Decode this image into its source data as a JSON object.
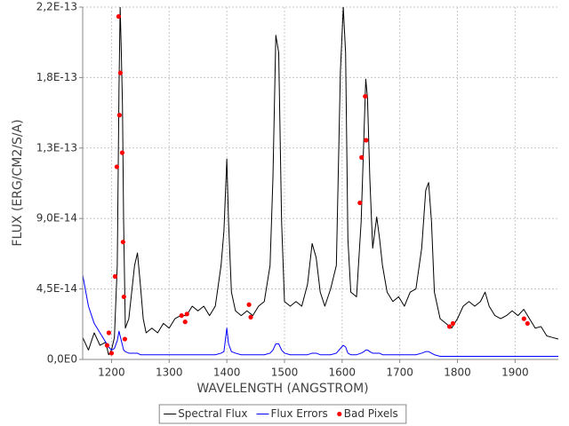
{
  "chart_data": {
    "type": "line",
    "xlabel": "WAVELENGTH (ANGSTROM)",
    "ylabel": "FLUX (ERG/CM2/S/A)",
    "xlim": [
      1150,
      1975
    ],
    "ylim": [
      0,
      2.25e-13
    ],
    "xticks": [
      1200,
      1300,
      1400,
      1500,
      1600,
      1700,
      1800,
      1900
    ],
    "yticks": [
      {
        "value": 0,
        "label": "0,0E0"
      },
      {
        "value": 4.5e-14,
        "label": "4,5E-14"
      },
      {
        "value": 9e-14,
        "label": "9,0E-14"
      },
      {
        "value": 1.35e-13,
        "label": "1,3E-13"
      },
      {
        "value": 1.8e-13,
        "label": "1,8E-13"
      },
      {
        "value": 2.25e-13,
        "label": "2,2E-13"
      }
    ],
    "grid": true,
    "legend": "bottom",
    "x": [
      1150,
      1160,
      1170,
      1180,
      1190,
      1195,
      1200,
      1205,
      1210,
      1213,
      1215,
      1217,
      1219,
      1221,
      1224,
      1230,
      1235,
      1240,
      1245,
      1250,
      1255,
      1260,
      1270,
      1280,
      1290,
      1300,
      1310,
      1320,
      1330,
      1340,
      1350,
      1360,
      1370,
      1380,
      1390,
      1395,
      1400,
      1403,
      1408,
      1415,
      1425,
      1435,
      1445,
      1455,
      1465,
      1475,
      1480,
      1485,
      1490,
      1495,
      1500,
      1510,
      1520,
      1530,
      1540,
      1548,
      1555,
      1562,
      1570,
      1580,
      1590,
      1597,
      1602,
      1606,
      1610,
      1615,
      1625,
      1633,
      1638,
      1641,
      1644,
      1648,
      1653,
      1660,
      1665,
      1670,
      1678,
      1688,
      1698,
      1708,
      1718,
      1728,
      1738,
      1745,
      1750,
      1755,
      1760,
      1770,
      1780,
      1790,
      1800,
      1810,
      1820,
      1830,
      1840,
      1848,
      1855,
      1865,
      1875,
      1885,
      1895,
      1905,
      1915,
      1925,
      1935,
      1945,
      1955,
      1965,
      1975
    ],
    "series": [
      {
        "name": "Spectral Flux",
        "color": "#000000",
        "values": [
          1.4e-14,
          6e-15,
          1.7e-14,
          9e-15,
          1.1e-14,
          3e-15,
          6e-15,
          1.4e-14,
          6e-14,
          1.73e-13,
          2.25e-13,
          1.96e-13,
          1.62e-13,
          8.8e-14,
          2e-14,
          2.6e-14,
          4.3e-14,
          6e-14,
          6.8e-14,
          4.8e-14,
          2.6e-14,
          1.7e-14,
          2e-14,
          1.7e-14,
          2.3e-14,
          2e-14,
          2.6e-14,
          2.8e-14,
          2.8e-14,
          3.4e-14,
          3.1e-14,
          3.4e-14,
          2.8e-14,
          3.4e-14,
          6e-14,
          8.2e-14,
          1.28e-13,
          8.8e-14,
          4.3e-14,
          3.1e-14,
          2.8e-14,
          3.1e-14,
          2.8e-14,
          3.4e-14,
          3.7e-14,
          6e-14,
          1.16e-13,
          2.07e-13,
          1.96e-13,
          8.8e-14,
          3.7e-14,
          3.4e-14,
          3.7e-14,
          3.4e-14,
          4.8e-14,
          7.4e-14,
          6.5e-14,
          4.3e-14,
          3.4e-14,
          4.5e-14,
          6e-14,
          1.84e-13,
          2.25e-13,
          1.96e-13,
          7.7e-14,
          4.3e-14,
          4e-14,
          8.8e-14,
          1.45e-13,
          1.79e-13,
          1.67e-13,
          1.16e-13,
          7.1e-14,
          9.1e-14,
          7.7e-14,
          6e-14,
          4.3e-14,
          3.7e-14,
          4e-14,
          3.4e-14,
          4.3e-14,
          4.5e-14,
          7.1e-14,
          1.08e-13,
          1.13e-13,
          8.8e-14,
          4.3e-14,
          2.6e-14,
          2.3e-14,
          2e-14,
          2.6e-14,
          3.4e-14,
          3.7e-14,
          3.4e-14,
          3.7e-14,
          4.3e-14,
          3.4e-14,
          2.8e-14,
          2.6e-14,
          2.8e-14,
          3.1e-14,
          2.8e-14,
          3.2e-14,
          2.6e-14,
          2e-14,
          2.1e-14,
          1.5e-14,
          1.4e-14,
          1.3e-14
        ]
      },
      {
        "name": "Flux Errors",
        "color": "#0000ff",
        "values": [
          5.4e-14,
          3.4e-14,
          2.3e-14,
          1.7e-14,
          1.1e-14,
          8e-15,
          6e-15,
          7e-15,
          1.2e-14,
          1.8e-14,
          1.5e-14,
          1.2e-14,
          9e-15,
          6e-15,
          5e-15,
          4e-15,
          4e-15,
          4e-15,
          4e-15,
          3e-15,
          3e-15,
          3e-15,
          3e-15,
          3e-15,
          3e-15,
          3e-15,
          3e-15,
          3e-15,
          3e-15,
          3e-15,
          3e-15,
          3e-15,
          3e-15,
          3e-15,
          4e-15,
          5e-15,
          2e-14,
          1e-14,
          5e-15,
          4e-15,
          3e-15,
          3e-15,
          3e-15,
          3e-15,
          3e-15,
          4e-15,
          6e-15,
          1e-14,
          1e-14,
          6e-15,
          4e-15,
          3e-15,
          3e-15,
          3e-15,
          3e-15,
          4e-15,
          4e-15,
          3e-15,
          3e-15,
          3e-15,
          4e-15,
          7e-15,
          9e-15,
          8e-15,
          4e-15,
          3e-15,
          3e-15,
          4e-15,
          5e-15,
          6e-15,
          6e-15,
          5e-15,
          4e-15,
          4e-15,
          4e-15,
          3e-15,
          3e-15,
          3e-15,
          3e-15,
          3e-15,
          3e-15,
          3e-15,
          4e-15,
          5e-15,
          5e-15,
          4e-15,
          3e-15,
          2e-15,
          2e-15,
          2e-15,
          2e-15,
          2e-15,
          2e-15,
          2e-15,
          2e-15,
          2e-15,
          2e-15,
          2e-15,
          2e-15,
          2e-15,
          2e-15,
          2e-15,
          2e-15,
          2e-15,
          2e-15,
          2e-15,
          2e-15,
          2e-15,
          2e-15
        ]
      },
      {
        "name": "Bad Pixels",
        "color": "#ff0000",
        "type": "scatter",
        "x": [
          1212.3,
          1215.4,
          1213.8,
          1218.5,
          1209.2,
          1220,
          1206.2,
          1221.5,
          1223.1,
          1195.4,
          1192.3,
          1200,
          1321.5,
          1330.8,
          1327.7,
          1438.5,
          1441.5,
          1630.8,
          1633.8,
          1640,
          1641.5,
          1786.2,
          1792.3,
          1915.4,
          1921.5
        ],
        "values": [
          2.19e-13,
          1.83e-13,
          1.56e-13,
          1.32e-13,
          1.23e-13,
          7.5e-14,
          5.3e-14,
          4e-14,
          1.3e-14,
          1.7e-14,
          9e-15,
          4e-15,
          2.8e-14,
          2.9e-14,
          2.4e-14,
          3.5e-14,
          2.7e-14,
          1e-13,
          1.29e-13,
          1.68e-13,
          1.4e-13,
          2.1e-14,
          2.3e-14,
          2.6e-14,
          2.3e-14
        ]
      }
    ]
  }
}
